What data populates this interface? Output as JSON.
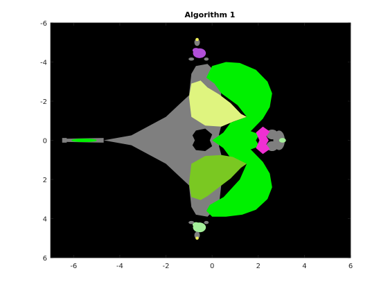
{
  "chart_data": {
    "type": "heatmap",
    "title": "Algorithm 1",
    "xlabel": "",
    "ylabel": "",
    "xlim": [
      -7,
      6
    ],
    "ylim": [
      6,
      -6
    ],
    "y_axis_reversed": true,
    "x_ticks": [
      -6,
      -4,
      -2,
      0,
      2,
      4,
      6
    ],
    "x_tick_labels": [
      "-6",
      "-4",
      "-2",
      "0",
      "2",
      "4",
      "6"
    ],
    "y_ticks": [
      -6,
      -4,
      -2,
      0,
      2,
      4,
      6
    ],
    "y_tick_labels": [
      "-6",
      "-4",
      "-2",
      "0",
      "2",
      "4",
      "6"
    ],
    "grid": false,
    "background_color": "#000000",
    "colors": {
      "gray_basin": "#7f7f7f",
      "green_basin": "#00f000",
      "light_yellow_basin": "#dff47f",
      "olive_green_basin": "#7ac822",
      "purple_basin": "#b14fd8",
      "magenta_basin": "#f02fd2",
      "light_green_basin": "#a4ef9a",
      "yellow_spot": "#f0f05a"
    }
  }
}
